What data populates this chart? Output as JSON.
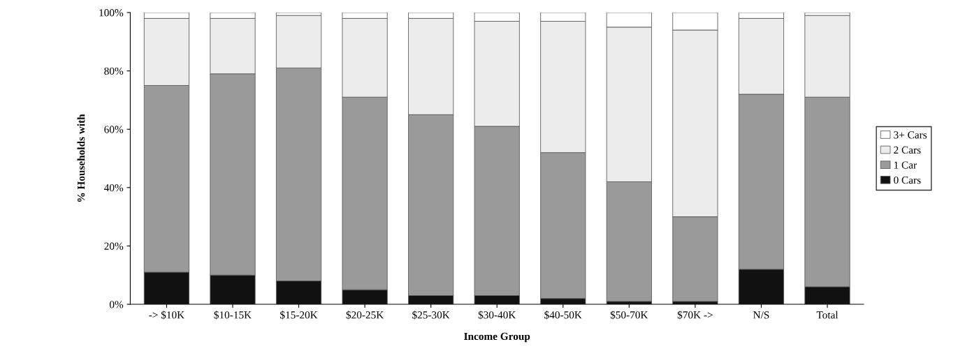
{
  "chart_data": {
    "type": "bar",
    "stacked": true,
    "xlabel": "Income Group",
    "ylabel": "% Households with",
    "categories": [
      "-> $10K",
      "$10-15K",
      "$15-20K",
      "$20-25K",
      "$25-30K",
      "$30-40K",
      "$40-50K",
      "$50-70K",
      "$70K ->",
      "N/S",
      "Total"
    ],
    "series": [
      {
        "name": "0 Cars",
        "color": "#111111",
        "values": [
          11,
          10,
          8,
          5,
          3,
          3,
          2,
          1,
          1,
          12,
          6
        ]
      },
      {
        "name": "1 Car",
        "color": "#9a9a9a",
        "values": [
          64,
          69,
          73,
          66,
          62,
          58,
          50,
          41,
          29,
          60,
          65
        ]
      },
      {
        "name": "2 Cars",
        "color": "#ececec",
        "values": [
          23,
          19,
          18,
          27,
          33,
          36,
          45,
          53,
          64,
          26,
          28
        ]
      },
      {
        "name": "3+ Cars",
        "color": "#ffffff",
        "values": [
          2,
          2,
          1,
          2,
          2,
          3,
          3,
          5,
          6,
          2,
          1
        ]
      }
    ],
    "ylim": [
      0,
      100
    ],
    "yticks": [
      {
        "value": 0,
        "label": "0%"
      },
      {
        "value": 20,
        "label": "20%"
      },
      {
        "value": 40,
        "label": "40%"
      },
      {
        "value": 60,
        "label": "60%"
      },
      {
        "value": 80,
        "label": "80%"
      },
      {
        "value": 100,
        "label": "100%"
      }
    ],
    "grid": false,
    "legend": "right"
  }
}
